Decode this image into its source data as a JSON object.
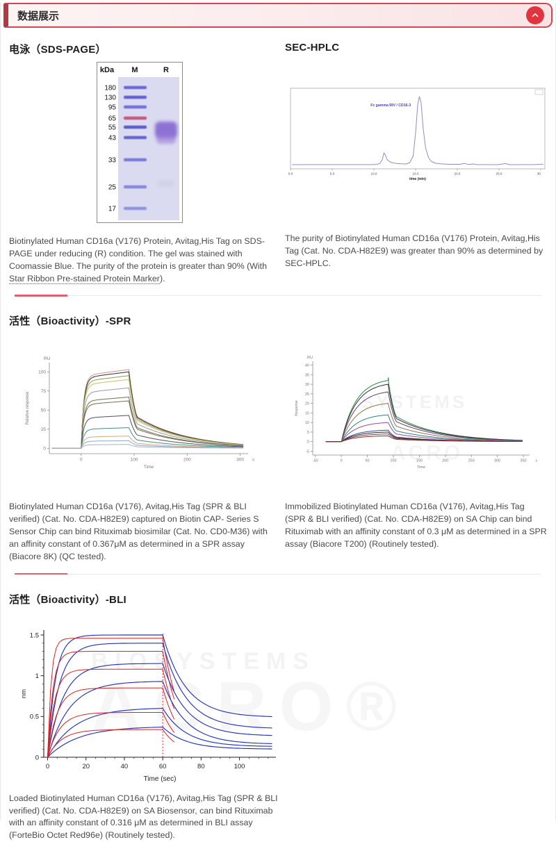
{
  "accent_color": "#d64550",
  "header": {
    "title": "数据展示"
  },
  "watermark": {
    "line1": "BIOSYSTEMS",
    "line2": "ACRO®"
  },
  "sections": {
    "sds": {
      "heading": "电泳（SDS-PAGE）",
      "caption": {
        "before": "Biotinylated Human CD16a (V176) Protein, Avitag,His Tag on SDS-PAGE under reducing (R) condition. The gel was stained with Coomassie Blue. The purity of the protein is greater than 90% (With ",
        "link": "Star Ribbon Pre-stained Protein Marker",
        "after": ")."
      }
    },
    "sec": {
      "heading": "SEC-HPLC",
      "caption": "The purity of Biotinylated Human CD16a (V176) Protein, Avitag,His Tag (Cat. No. CDA-H82E9) was greater than 90% as determined by SEC-HPLC."
    },
    "spr": {
      "heading": "活性（Bioactivity）-SPR",
      "caption_left": "Biotinylated Human CD16a (V176), Avitag,His Tag (SPR & BLI verified) (Cat. No. CDA-H82E9) captured on Biotin CAP- Series S Sensor Chip can bind Rituximab biosimilar (Cat. No. CD0-M36) with an affinity constant of 0.367μM as determined in a SPR assay (Biacore 8K) (QC tested).",
      "caption_right": "Immobilized Biotinylated Human CD16a (V176), Avitag,His Tag (SPR & BLI verified) (Cat. No. CDA-H82E9) on SA Chip can bind Rituximab with an affinity constant of 0.3 μM as determined in a SPR assay (Biacore T200) (Routinely tested)."
    },
    "bli": {
      "heading": "活性（Bioactivity）-BLI",
      "caption": "Loaded Biotinylated Human CD16a (V176), Avitag,His Tag (SPR & BLI verified) (Cat. No. CDA-H82E9) on SA Biosensor, can bind Rituximab with an affinity constant of 0.316 μM as determined in BLI assay (ForteBio Octet Red96e) (Routinely tested)."
    }
  },
  "gel": {
    "header": [
      "kDa",
      "M",
      "R"
    ],
    "markers": [
      "180",
      "130",
      "95",
      "65",
      "55",
      "43",
      "33",
      "25",
      "17"
    ],
    "band_colors": [
      "#6666d6",
      "#5e5ed2",
      "#7070d8",
      "#c4547c",
      "#5858c8",
      "#6464d0",
      "#7878dc",
      "#8484de",
      "#9090e0"
    ],
    "gel_bg": "#dadaf0",
    "sample_smear_kda": "43-55"
  },
  "chart_data": [
    {
      "id": "sec-hplc",
      "type": "line",
      "annotation": "Fc gamma RIV / CD16-3",
      "annotation_color": "#4646b4",
      "xlabel": "time (min)",
      "xlim": [
        0,
        30.5
      ],
      "xticks": [
        0,
        5,
        10,
        15,
        20,
        25,
        30
      ],
      "xtick_labels": [
        "0.0",
        "5.0",
        "10.0",
        "15.0",
        "20.0",
        "25.0",
        "30"
      ],
      "ylim": [
        -4,
        112
      ],
      "line_color": "#8c8cc8",
      "points": [
        [
          0.2,
          2
        ],
        [
          4,
          2
        ],
        [
          8,
          2
        ],
        [
          9.6,
          2
        ],
        [
          10.3,
          2.4
        ],
        [
          10.7,
          3.5
        ],
        [
          11.0,
          9
        ],
        [
          11.2,
          19
        ],
        [
          11.4,
          15
        ],
        [
          11.6,
          9
        ],
        [
          12.0,
          5.5
        ],
        [
          12.5,
          4
        ],
        [
          13.2,
          3.2
        ],
        [
          13.9,
          3
        ],
        [
          14.3,
          5
        ],
        [
          14.7,
          14
        ],
        [
          15.0,
          48
        ],
        [
          15.25,
          88
        ],
        [
          15.45,
          100
        ],
        [
          15.65,
          92
        ],
        [
          15.9,
          55
        ],
        [
          16.2,
          26
        ],
        [
          16.55,
          12
        ],
        [
          16.9,
          6.5
        ],
        [
          17.4,
          4
        ],
        [
          18.2,
          3
        ],
        [
          19.2,
          2.5
        ],
        [
          20.3,
          2.5
        ],
        [
          20.9,
          3.8
        ],
        [
          21.3,
          2.3
        ],
        [
          21.9,
          3
        ],
        [
          22.4,
          2
        ],
        [
          23.5,
          2
        ],
        [
          24.8,
          2
        ],
        [
          25.8,
          3.5
        ],
        [
          26.3,
          2
        ],
        [
          27.5,
          2
        ],
        [
          29,
          2
        ],
        [
          30.3,
          2.5
        ]
      ]
    },
    {
      "id": "spr-biacore-8k",
      "type": "spr",
      "ylabel": "Relative response",
      "y_unit": "RU",
      "xlabel": "Time",
      "x_unit": "s",
      "xlim": [
        -60,
        315
      ],
      "xticks": [
        0,
        100,
        200,
        300
      ],
      "ylim": [
        -7,
        112
      ],
      "yticks": [
        0,
        25,
        50,
        75,
        100
      ],
      "t_start": -55,
      "t_off": 90,
      "t_end": 308,
      "tau": 5,
      "drift": 0.08,
      "k1": 0.06,
      "k2": 0.0105,
      "series": [
        {
          "plateau": 103,
          "color": "#d98e96"
        },
        {
          "plateau": 100,
          "color": "#2e2e2e"
        },
        {
          "plateau": 95,
          "color": "#8f9a4f"
        },
        {
          "plateau": 90,
          "color": "#c2c26a"
        },
        {
          "plateau": 79,
          "color": "#8f9aa6"
        },
        {
          "plateau": 67,
          "color": "#6f6f4a"
        },
        {
          "plateau": 62,
          "color": "#7a6a50"
        },
        {
          "plateau": 43,
          "color": "#4f4f5f"
        },
        {
          "plateau": 27,
          "color": "#3f8f7a"
        },
        {
          "plateau": 16,
          "color": "#d4a880"
        },
        {
          "plateau": 10,
          "color": "#88aacc"
        },
        {
          "plateau": 5,
          "color": "#aab4be"
        }
      ]
    },
    {
      "id": "spr-biacore-t200",
      "type": "spr",
      "ylabel": "Response",
      "y_unit": "RU",
      "xlabel": "Time",
      "x_unit": "s",
      "xlim": [
        -55,
        362
      ],
      "xticks": [
        -50,
        0,
        50,
        100,
        150,
        200,
        250,
        300,
        350
      ],
      "ylim": [
        -7,
        42
      ],
      "yticks": [
        -5,
        0,
        5,
        10,
        15,
        20,
        25,
        30,
        35,
        40
      ],
      "t_start": -30,
      "t_off": 90,
      "t_end": 350,
      "tau": 28,
      "drift": 0,
      "k1": 0.06,
      "k2": 0.012,
      "fit_overlay": true,
      "watermarks": [
        {
          "text": "SYSTEMS",
          "x": 0.5,
          "y": 0.45,
          "size": 26,
          "op": 0.05
        },
        {
          "text": "ACRO",
          "x": 0.55,
          "y": 0.85,
          "size": 30,
          "op": 0.04
        }
      ],
      "series": [
        {
          "plateau": 32,
          "color": "#3fae5a",
          "spike": 33.5
        },
        {
          "plateau": 30,
          "color": "#3a3a3a"
        },
        {
          "plateau": 26,
          "color": "#7a4fa0"
        },
        {
          "plateau": 20,
          "color": "#b89a62"
        },
        {
          "plateau": 14,
          "color": "#3aa8b0"
        },
        {
          "plateau": 10,
          "color": "#c95fc9"
        },
        {
          "plateau": 6,
          "color": "#4a5fc9"
        },
        {
          "plateau": 5,
          "color": "#32324f"
        },
        {
          "plateau": 4,
          "color": "#9a5a3a"
        },
        {
          "plateau": 3,
          "color": "#b03a3a"
        }
      ]
    },
    {
      "id": "bli-octet",
      "type": "bli",
      "ylabel": "nm",
      "xlabel": "Time (sec)",
      "xlim": [
        -2,
        119
      ],
      "xticks": [
        0,
        20,
        40,
        60,
        80,
        100
      ],
      "ylim": [
        0,
        1.56
      ],
      "yticks": [
        0,
        0.5,
        1,
        1.5
      ],
      "ytick_labels": [
        "0",
        "0.5",
        "1",
        "1.5"
      ],
      "t_off": 60,
      "t_end": 118,
      "marker_x": 60,
      "data_color": "#2233bb",
      "fit_color": "#dd2222",
      "taus": [
        4,
        6,
        8,
        11,
        14,
        16
      ],
      "pairs": [
        {
          "fit": 1.46,
          "data": 1.5,
          "end": 0.49
        },
        {
          "fit": 1.3,
          "data": 1.4,
          "end": 0.35
        },
        {
          "fit": 1.08,
          "data": 1.15,
          "end": 0.26
        },
        {
          "fit": 0.85,
          "data": 0.93,
          "end": 0.16
        },
        {
          "fit": 0.55,
          "data": 0.6,
          "end": 0.13
        },
        {
          "fit": 0.34,
          "data": 0.37,
          "end": 0.1
        }
      ]
    }
  ]
}
